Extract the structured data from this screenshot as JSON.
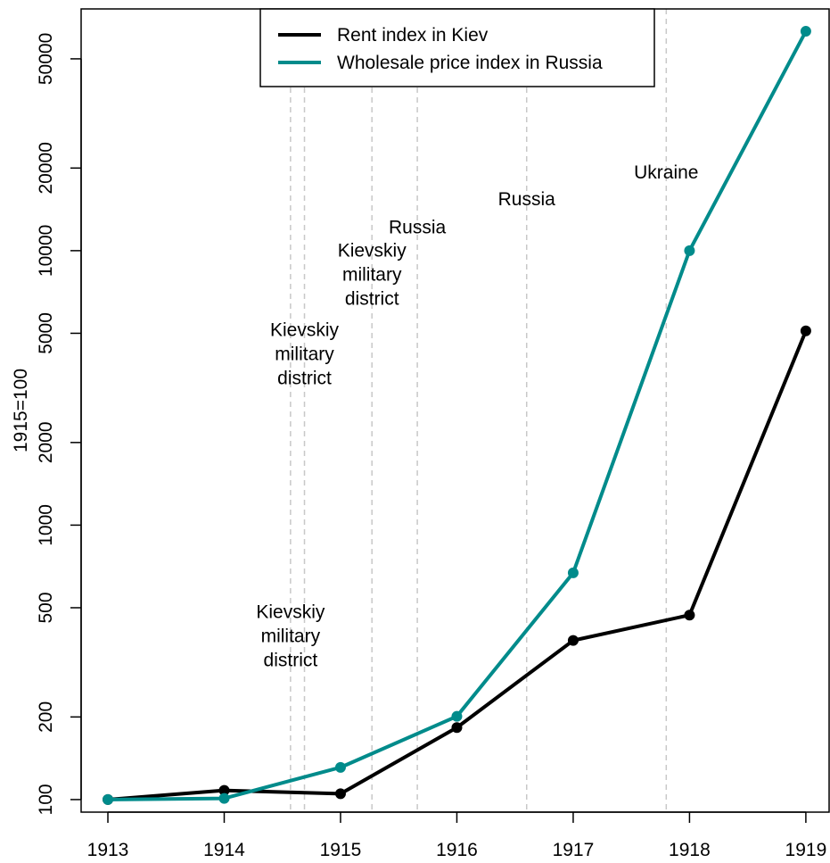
{
  "chart_data": {
    "type": "line",
    "title": "",
    "xlabel": "",
    "ylabel": "1915=100",
    "x": [
      1913,
      1914,
      1915,
      1916,
      1917,
      1918,
      1919
    ],
    "xlim": [
      1912.77,
      1919.2
    ],
    "ylim": [
      90,
      76000
    ],
    "y_scale": "log",
    "x_ticks": [
      "1913",
      "1914",
      "1915",
      "1916",
      "1917",
      "1918",
      "1919"
    ],
    "y_ticks": [
      {
        "value": 100,
        "label": "100"
      },
      {
        "value": 200,
        "label": "200"
      },
      {
        "value": 500,
        "label": "500"
      },
      {
        "value": 1000,
        "label": "1000"
      },
      {
        "value": 2000,
        "label": "2000"
      },
      {
        "value": 5000,
        "label": "5000"
      },
      {
        "value": 10000,
        "label": "10000"
      },
      {
        "value": 20000,
        "label": "20000"
      },
      {
        "value": 50000,
        "label": "50000"
      }
    ],
    "legend_position": "top-center",
    "series": [
      {
        "name": "Rent index in Kiev",
        "color": "#000000",
        "values": [
          100,
          108,
          105,
          183,
          380,
          470,
          5100
        ]
      },
      {
        "name": "Wholesale price index in Russia",
        "color": "#008b8b",
        "values": [
          100,
          101,
          131,
          201,
          670,
          10000,
          63000
        ]
      }
    ],
    "vlines": [
      1914.57,
      1914.69,
      1915.27,
      1915.66,
      1916.6,
      1917.8
    ],
    "annotations": [
      {
        "x": 1914.57,
        "y": 395,
        "lines": [
          "Kievskiy",
          "military",
          "district"
        ]
      },
      {
        "x": 1914.69,
        "y": 4200,
        "lines": [
          "Kievskiy",
          "military",
          "district"
        ]
      },
      {
        "x": 1915.27,
        "y": 8200,
        "lines": [
          "Kievskiy",
          "military",
          "district"
        ]
      },
      {
        "x": 1915.66,
        "y": 12200,
        "lines": [
          "Russia"
        ]
      },
      {
        "x": 1916.6,
        "y": 15400,
        "lines": [
          "Russia"
        ]
      },
      {
        "x": 1917.8,
        "y": 19300,
        "lines": [
          "Ukraine"
        ]
      }
    ]
  }
}
